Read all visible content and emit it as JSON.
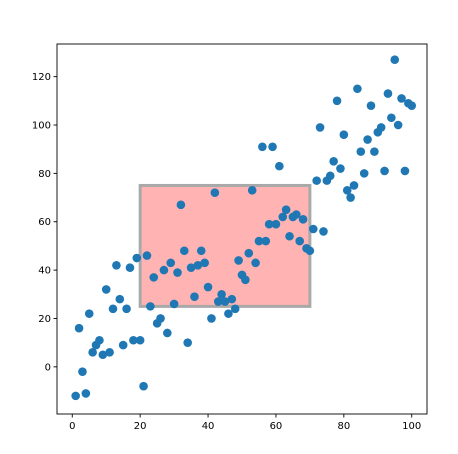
{
  "chart_data": {
    "type": "scatter",
    "title": "",
    "xlabel": "",
    "ylabel": "",
    "xlim": [
      -4.5,
      104.5
    ],
    "ylim": [
      -19.5,
      133.5
    ],
    "xticks": [
      0,
      20,
      40,
      60,
      80,
      100
    ],
    "yticks": [
      0,
      20,
      40,
      60,
      80,
      100,
      120
    ],
    "xtick_labels": [
      "0",
      "20",
      "40",
      "60",
      "80",
      "100"
    ],
    "ytick_labels": [
      "0",
      "20",
      "40",
      "60",
      "80",
      "100",
      "120"
    ],
    "grid": false,
    "legend": "none",
    "marker_color": "#1f77b4",
    "series": [
      {
        "points": [
          [
            1,
            -12
          ],
          [
            2,
            16
          ],
          [
            3,
            -2
          ],
          [
            4,
            -11
          ],
          [
            5,
            22
          ],
          [
            6,
            6
          ],
          [
            7,
            9
          ],
          [
            8,
            11
          ],
          [
            9,
            5
          ],
          [
            10,
            32
          ],
          [
            11,
            6
          ],
          [
            12,
            24
          ],
          [
            13,
            42
          ],
          [
            14,
            28
          ],
          [
            15,
            9
          ],
          [
            16,
            24
          ],
          [
            17,
            41
          ],
          [
            18,
            11
          ],
          [
            19,
            45
          ],
          [
            20,
            11
          ],
          [
            21,
            -8
          ],
          [
            22,
            46
          ],
          [
            23,
            25
          ],
          [
            24,
            37
          ],
          [
            25,
            18
          ],
          [
            26,
            20
          ],
          [
            27,
            40
          ],
          [
            28,
            14
          ],
          [
            29,
            43
          ],
          [
            30,
            26
          ],
          [
            31,
            39
          ],
          [
            32,
            67
          ],
          [
            33,
            48
          ],
          [
            34,
            10
          ],
          [
            35,
            41
          ],
          [
            36,
            29
          ],
          [
            37,
            42
          ],
          [
            38,
            48
          ],
          [
            39,
            43
          ],
          [
            40,
            33
          ],
          [
            41,
            20
          ],
          [
            42,
            72
          ],
          [
            43,
            27
          ],
          [
            44,
            30
          ],
          [
            45,
            27
          ],
          [
            46,
            22
          ],
          [
            47,
            28
          ],
          [
            48,
            24
          ],
          [
            49,
            44
          ],
          [
            50,
            38
          ],
          [
            51,
            36
          ],
          [
            52,
            47
          ],
          [
            53,
            73
          ],
          [
            54,
            43
          ],
          [
            55,
            52
          ],
          [
            56,
            91
          ],
          [
            57,
            52
          ],
          [
            58,
            59
          ],
          [
            59,
            91
          ],
          [
            60,
            59
          ],
          [
            61,
            83
          ],
          [
            62,
            62
          ],
          [
            63,
            65
          ],
          [
            64,
            54
          ],
          [
            65,
            62
          ],
          [
            66,
            63
          ],
          [
            67,
            52
          ],
          [
            68,
            61
          ],
          [
            69,
            49
          ],
          [
            70,
            48
          ],
          [
            71,
            57
          ],
          [
            72,
            77
          ],
          [
            73,
            99
          ],
          [
            74,
            56
          ],
          [
            75,
            77
          ],
          [
            76,
            79
          ],
          [
            77,
            85
          ],
          [
            78,
            110
          ],
          [
            79,
            82
          ],
          [
            80,
            96
          ],
          [
            81,
            73
          ],
          [
            82,
            70
          ],
          [
            83,
            75
          ],
          [
            84,
            115
          ],
          [
            85,
            89
          ],
          [
            86,
            80
          ],
          [
            87,
            94
          ],
          [
            88,
            108
          ],
          [
            89,
            89
          ],
          [
            90,
            97
          ],
          [
            91,
            99
          ],
          [
            92,
            81
          ],
          [
            93,
            113
          ],
          [
            94,
            103
          ],
          [
            95,
            127
          ],
          [
            96,
            100
          ],
          [
            97,
            111
          ],
          [
            98,
            81
          ],
          [
            99,
            109
          ],
          [
            100,
            108
          ]
        ]
      }
    ],
    "highlight_rect": {
      "x_range": [
        20,
        70
      ],
      "y_range": [
        25,
        75
      ],
      "fill_color": "#ffb3b3",
      "edge_color": "#a9a9a9"
    }
  }
}
